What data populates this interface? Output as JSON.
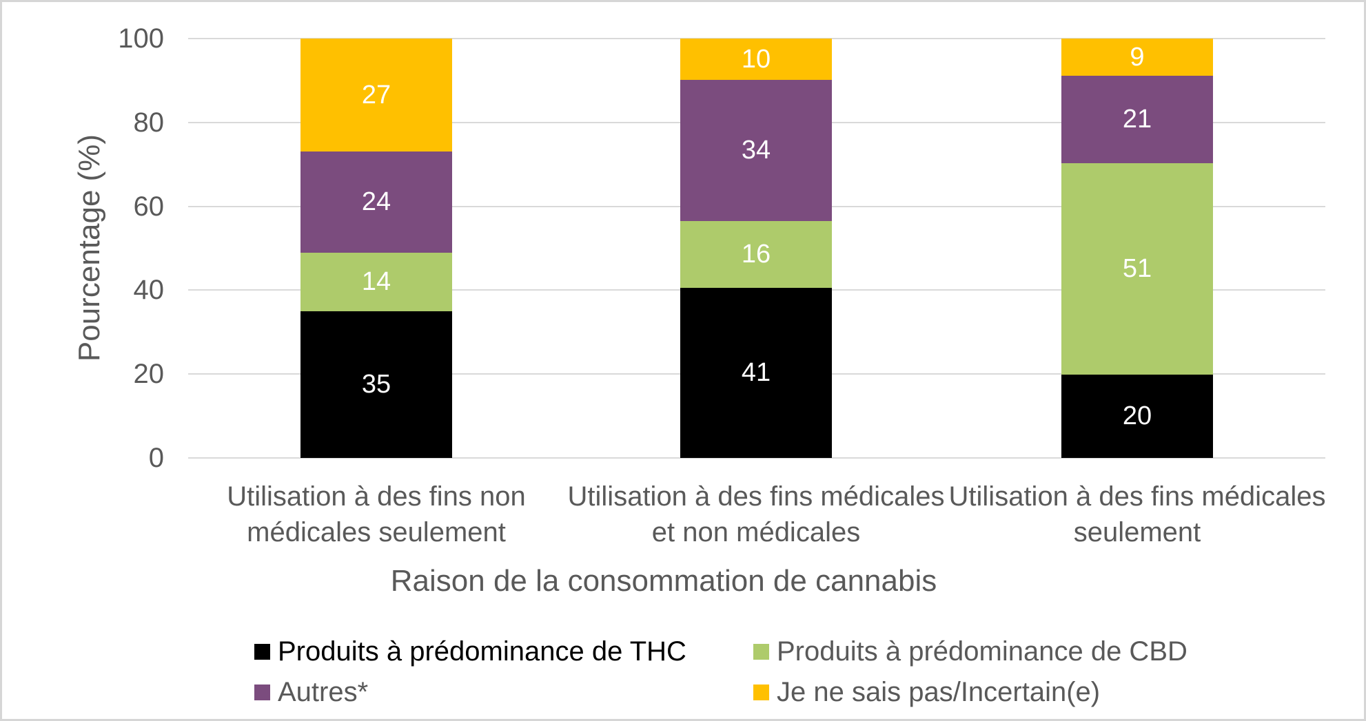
{
  "chart_data": {
    "type": "bar",
    "stacked": true,
    "xlabel": "Raison de la consommation de cannabis",
    "ylabel": "Pourcentage (%)",
    "ylim": [
      0,
      100
    ],
    "yticks": [
      0,
      20,
      40,
      60,
      80,
      100
    ],
    "grid": true,
    "legend_position": "bottom",
    "categories": [
      [
        "Utilisation à des fins non",
        "médicales seulement"
      ],
      [
        "Utilisation à des fins médicales",
        "et non médicales"
      ],
      [
        "Utilisation à des fins médicales",
        "seulement"
      ]
    ],
    "series": [
      {
        "name": "Produits à prédominance de THC",
        "color": "#000000",
        "values": [
          35,
          41,
          20
        ]
      },
      {
        "name": "Produits à prédominance de CBD",
        "color": "#aecb6b",
        "values": [
          14,
          16,
          51
        ]
      },
      {
        "name": "Autres*",
        "color": "#7b4c7e",
        "values": [
          24,
          34,
          21
        ]
      },
      {
        "name": "Je ne sais pas/Incertain(e)",
        "color": "#ffc000",
        "values": [
          27,
          10,
          9
        ]
      }
    ],
    "colors": {
      "grid": "#d9d9d9",
      "axis_text": "#595959",
      "data_label": "#ffffff",
      "border": "#d6d6d6",
      "legend_text": "#595959",
      "legend_first_text": "#000000"
    }
  }
}
